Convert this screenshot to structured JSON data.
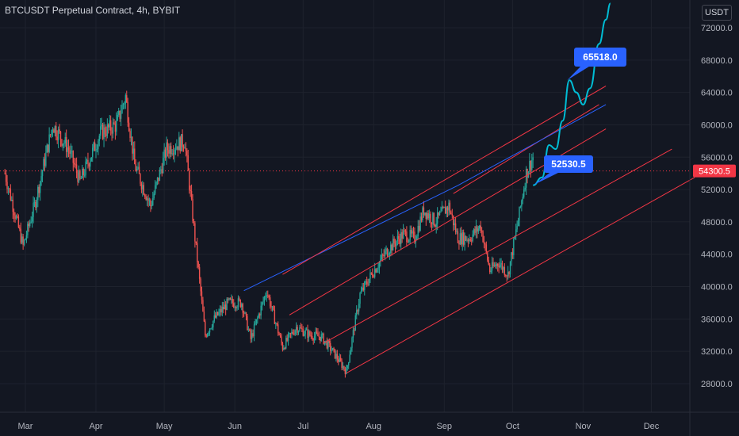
{
  "header": {
    "title": "BTCUSDT Perpetual Contract, 4h, BYBIT",
    "unit": "USDT"
  },
  "colors": {
    "background": "#131722",
    "grid": "#1e222d",
    "up": "#26a69a",
    "down": "#ef5350",
    "channel": "#f23645",
    "trendline": "#2962ff",
    "projection": "#00bcd4",
    "callout": "#2962ff",
    "last_price": "#f23645"
  },
  "chart_data": {
    "type": "line",
    "title": "BTCUSDT Perpetual Contract, 4h, BYBIT",
    "xlabel": "",
    "ylabel": "",
    "ylim": [
      26000,
      74000
    ],
    "y_ticks": [
      "72000.0",
      "68000.0",
      "64000.0",
      "60000.0",
      "56000.0",
      "52000.0",
      "48000.0",
      "44000.0",
      "40000.0",
      "36000.0",
      "32000.0",
      "28000.0"
    ],
    "x_ticks": [
      "Mar",
      "Apr",
      "May",
      "Jun",
      "Jul",
      "Aug",
      "Sep",
      "Oct",
      "Nov",
      "Dec"
    ],
    "last_price": "54300.5",
    "price_series": {
      "name": "",
      "x": [
        "2021-02-20",
        "2021-02-28",
        "2021-03-05",
        "2021-03-13",
        "2021-03-20",
        "2021-03-25",
        "2021-04-03",
        "2021-04-10",
        "2021-04-14",
        "2021-04-18",
        "2021-04-25",
        "2021-05-02",
        "2021-05-10",
        "2021-05-13",
        "2021-05-19",
        "2021-05-23",
        "2021-05-29",
        "2021-06-04",
        "2021-06-08",
        "2021-06-15",
        "2021-06-22",
        "2021-06-28",
        "2021-07-04",
        "2021-07-09",
        "2021-07-14",
        "2021-07-20",
        "2021-07-26",
        "2021-07-31",
        "2021-08-07",
        "2021-08-14",
        "2021-08-19",
        "2021-08-23",
        "2021-08-28",
        "2021-09-03",
        "2021-09-07",
        "2021-09-12",
        "2021-09-17",
        "2021-09-21",
        "2021-09-25",
        "2021-09-29",
        "2021-10-04",
        "2021-10-07",
        "2021-10-10"
      ],
      "y": [
        54000,
        45000,
        50000,
        60000,
        57000,
        53000,
        59000,
        60000,
        63500,
        55000,
        50000,
        57000,
        58000,
        50000,
        34000,
        36000,
        38000,
        38000,
        33500,
        39500,
        32500,
        35000,
        34000,
        33800,
        32000,
        29500,
        39000,
        41500,
        44500,
        46500,
        46000,
        49500,
        48000,
        50000,
        46000,
        46000,
        47500,
        42000,
        43000,
        41500,
        49000,
        54000,
        56000
      ]
    },
    "projection": {
      "name": "",
      "x": [
        "2021-10-10",
        "2021-10-14",
        "2021-10-17",
        "2021-10-20",
        "2021-10-23",
        "2021-10-26",
        "2021-10-29",
        "2021-11-01",
        "2021-11-04",
        "2021-11-08",
        "2021-11-11",
        "2021-11-13"
      ],
      "y": [
        52530,
        53500,
        57500,
        57000,
        60500,
        65518,
        64000,
        62500,
        64500,
        70000,
        73000,
        75000
      ]
    },
    "callouts": [
      {
        "text": "65518.0",
        "x": "2021-10-25",
        "y": 65518
      },
      {
        "text": "52530.5",
        "x": "2021-10-10",
        "y": 52530
      }
    ],
    "trendlines": [
      {
        "type": "resistance",
        "x": [
          "2021-06-05",
          "2021-09-07"
        ],
        "y": [
          39500,
          52500
        ]
      },
      {
        "type": "channel-top",
        "x": [
          "2021-09-05",
          "2021-11-08"
        ],
        "y": [
          51500,
          62500
        ]
      }
    ],
    "channel_lines": [
      {
        "x": [
          "2021-06-22",
          "2021-11-11"
        ],
        "y": [
          41500,
          64800
        ]
      },
      {
        "x": [
          "2021-06-25",
          "2021-11-11"
        ],
        "y": [
          36500,
          59500
        ]
      },
      {
        "x": [
          "2021-07-10",
          "2021-12-10"
        ],
        "y": [
          33000,
          57000
        ]
      },
      {
        "x": [
          "2021-07-20",
          "2021-12-20"
        ],
        "y": [
          29300,
          53500
        ]
      }
    ]
  }
}
